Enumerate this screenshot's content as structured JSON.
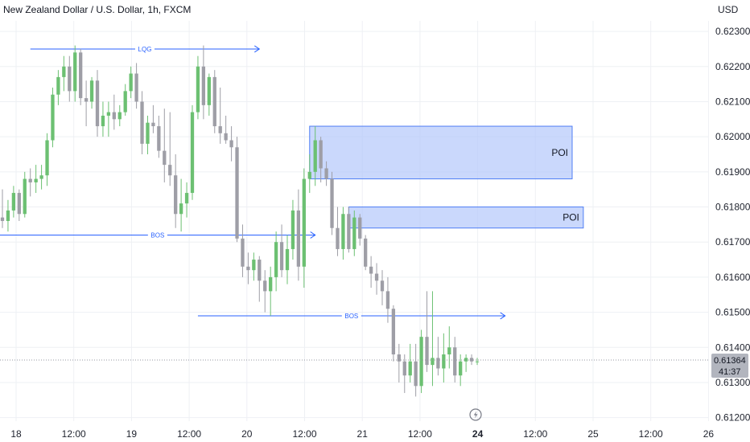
{
  "colors": {
    "up": "#6cc072",
    "down": "#9e9ea6",
    "annotation": "#2962ff",
    "zone_fill": "#b3c8fb",
    "zone_stroke": "#4f7ef5",
    "price_tag_bg": "#b2b5be"
  },
  "icons": {
    "live_indicator": "lightning-icon"
  },
  "chart_data": {
    "type": "candlestick",
    "title": "New Zealand Dollar / U.S. Dollar, 1h, FXCM",
    "currency": "USD",
    "ylim": [
      0.6119,
      0.6233
    ],
    "y_ticks": [
      "0.62300",
      "0.62200",
      "0.62100",
      "0.62000",
      "0.61900",
      "0.61800",
      "0.61700",
      "0.61600",
      "0.61500",
      "0.61400",
      "0.61300",
      "0.61200"
    ],
    "x_ticks": [
      "18",
      "12:00",
      "19",
      "12:00",
      "20",
      "12:00",
      "21",
      "12:00",
      "24",
      "12:00",
      "25",
      "12:00",
      "26"
    ],
    "x_tick_range": [
      -1,
      178
    ],
    "candle_index_range": [
      0,
      85
    ],
    "grid": true,
    "last_price": "0.61364",
    "countdown": "41:37",
    "candles": [
      [
        0.6177,
        0.6185,
        0.6174,
        0.6176
      ],
      [
        0.6176,
        0.6182,
        0.6173,
        0.6179
      ],
      [
        0.6179,
        0.6186,
        0.6177,
        0.6184
      ],
      [
        0.6184,
        0.6185,
        0.6176,
        0.6178
      ],
      [
        0.6178,
        0.619,
        0.6177,
        0.6188
      ],
      [
        0.6188,
        0.6191,
        0.6183,
        0.6187
      ],
      [
        0.6187,
        0.6192,
        0.6184,
        0.6188
      ],
      [
        0.6188,
        0.6192,
        0.6185,
        0.6189
      ],
      [
        0.6189,
        0.6201,
        0.6186,
        0.6199
      ],
      [
        0.6199,
        0.6214,
        0.6197,
        0.6212
      ],
      [
        0.6212,
        0.6219,
        0.6209,
        0.6217
      ],
      [
        0.6217,
        0.6223,
        0.6213,
        0.622
      ],
      [
        0.622,
        0.6223,
        0.621,
        0.6213
      ],
      [
        0.6213,
        0.6226,
        0.621,
        0.6224
      ],
      [
        0.6224,
        0.6225,
        0.6209,
        0.6211
      ],
      [
        0.6211,
        0.6216,
        0.6203,
        0.621
      ],
      [
        0.621,
        0.6217,
        0.6208,
        0.6216
      ],
      [
        0.6216,
        0.6219,
        0.62,
        0.6203
      ],
      [
        0.6203,
        0.621,
        0.62,
        0.6206
      ],
      [
        0.6206,
        0.621,
        0.62,
        0.6207
      ],
      [
        0.6207,
        0.6212,
        0.6202,
        0.6205
      ],
      [
        0.6205,
        0.6209,
        0.6203,
        0.6207
      ],
      [
        0.6207,
        0.6215,
        0.6206,
        0.6213
      ],
      [
        0.6213,
        0.622,
        0.6211,
        0.6218
      ],
      [
        0.6218,
        0.6221,
        0.6208,
        0.621
      ],
      [
        0.621,
        0.6213,
        0.6195,
        0.6198
      ],
      [
        0.6198,
        0.6206,
        0.6195,
        0.6204
      ],
      [
        0.6204,
        0.6209,
        0.6201,
        0.6203
      ],
      [
        0.6203,
        0.6206,
        0.6194,
        0.6196
      ],
      [
        0.6196,
        0.6208,
        0.6187,
        0.6192
      ],
      [
        0.6192,
        0.6207,
        0.6186,
        0.6189
      ],
      [
        0.6189,
        0.6195,
        0.6174,
        0.6178
      ],
      [
        0.6178,
        0.6188,
        0.6173,
        0.6181
      ],
      [
        0.6181,
        0.6187,
        0.6177,
        0.6184
      ],
      [
        0.6184,
        0.6209,
        0.6182,
        0.6207
      ],
      [
        0.6207,
        0.6223,
        0.6205,
        0.622
      ],
      [
        0.622,
        0.6226,
        0.6205,
        0.6209
      ],
      [
        0.6209,
        0.6218,
        0.6206,
        0.6217
      ],
      [
        0.6217,
        0.6219,
        0.6201,
        0.6203
      ],
      [
        0.6203,
        0.6214,
        0.6198,
        0.6201
      ],
      [
        0.6201,
        0.6206,
        0.6198,
        0.6199
      ],
      [
        0.6199,
        0.6203,
        0.6193,
        0.6197
      ],
      [
        0.6197,
        0.62,
        0.617,
        0.6171
      ],
      [
        0.6171,
        0.6175,
        0.616,
        0.6163
      ],
      [
        0.6163,
        0.6167,
        0.6158,
        0.6162
      ],
      [
        0.6162,
        0.6167,
        0.6159,
        0.6165
      ],
      [
        0.6165,
        0.6166,
        0.6153,
        0.6159
      ],
      [
        0.6159,
        0.6162,
        0.615,
        0.6156
      ],
      [
        0.6156,
        0.6163,
        0.6149,
        0.616
      ],
      [
        0.616,
        0.6173,
        0.6156,
        0.617
      ],
      [
        0.617,
        0.6175,
        0.616,
        0.6162
      ],
      [
        0.6162,
        0.6172,
        0.6158,
        0.6168
      ],
      [
        0.6168,
        0.6182,
        0.6165,
        0.6179
      ],
      [
        0.6179,
        0.6185,
        0.6159,
        0.6163
      ],
      [
        0.6163,
        0.6191,
        0.6157,
        0.6188
      ],
      [
        0.6188,
        0.6195,
        0.6184,
        0.619
      ],
      [
        0.619,
        0.6203,
        0.6186,
        0.6199
      ],
      [
        0.6199,
        0.62,
        0.6187,
        0.6191
      ],
      [
        0.6191,
        0.6193,
        0.6186,
        0.6188
      ],
      [
        0.6188,
        0.619,
        0.6172,
        0.6174
      ],
      [
        0.6174,
        0.618,
        0.6166,
        0.6168
      ],
      [
        0.6168,
        0.618,
        0.6165,
        0.6178
      ],
      [
        0.6178,
        0.618,
        0.6167,
        0.6168
      ],
      [
        0.6168,
        0.6179,
        0.6166,
        0.6177
      ],
      [
        0.6177,
        0.6178,
        0.6169,
        0.6171
      ],
      [
        0.6171,
        0.6172,
        0.6162,
        0.6163
      ],
      [
        0.6163,
        0.6166,
        0.6157,
        0.6161
      ],
      [
        0.6161,
        0.6164,
        0.6155,
        0.6159
      ],
      [
        0.6159,
        0.6162,
        0.6152,
        0.6156
      ],
      [
        0.6156,
        0.616,
        0.6147,
        0.6151
      ],
      [
        0.6151,
        0.6152,
        0.6136,
        0.6138
      ],
      [
        0.6138,
        0.6141,
        0.613,
        0.6136
      ],
      [
        0.6136,
        0.6138,
        0.6127,
        0.6132
      ],
      [
        0.6132,
        0.6141,
        0.613,
        0.6136
      ],
      [
        0.6136,
        0.6141,
        0.6126,
        0.6129
      ],
      [
        0.6129,
        0.6145,
        0.6127,
        0.6143
      ],
      [
        0.6143,
        0.6156,
        0.6133,
        0.6135
      ],
      [
        0.6135,
        0.6156,
        0.6129,
        0.6137
      ],
      [
        0.6137,
        0.6143,
        0.6132,
        0.6134
      ],
      [
        0.6134,
        0.6144,
        0.613,
        0.6138
      ],
      [
        0.6138,
        0.6146,
        0.6134,
        0.614
      ],
      [
        0.614,
        0.6143,
        0.613,
        0.6132
      ],
      [
        0.6132,
        0.6138,
        0.6129,
        0.6136
      ],
      [
        0.6136,
        0.6138,
        0.6133,
        0.6137
      ],
      [
        0.6137,
        0.6138,
        0.6135,
        0.6136
      ],
      [
        0.6136,
        0.6137,
        0.6135,
        0.6136
      ]
    ],
    "levels": [
      {
        "label": "LQG",
        "price": 0.6225,
        "from_index": 5,
        "to_index": 46,
        "arrow": true
      },
      {
        "label": "BOS",
        "price": 0.6172,
        "from_index": -1,
        "to_index": 56,
        "arrow": true
      },
      {
        "label": "BOS",
        "price": 0.6149,
        "from_index": 35,
        "to_index": 90,
        "arrow": true
      }
    ],
    "zones": [
      {
        "label": "POI",
        "high": 0.6203,
        "low": 0.6188,
        "from_index": 55,
        "to_index": 102
      },
      {
        "label": "POI",
        "high": 0.618,
        "low": 0.6174,
        "from_index": 62,
        "to_index": 104
      }
    ]
  }
}
